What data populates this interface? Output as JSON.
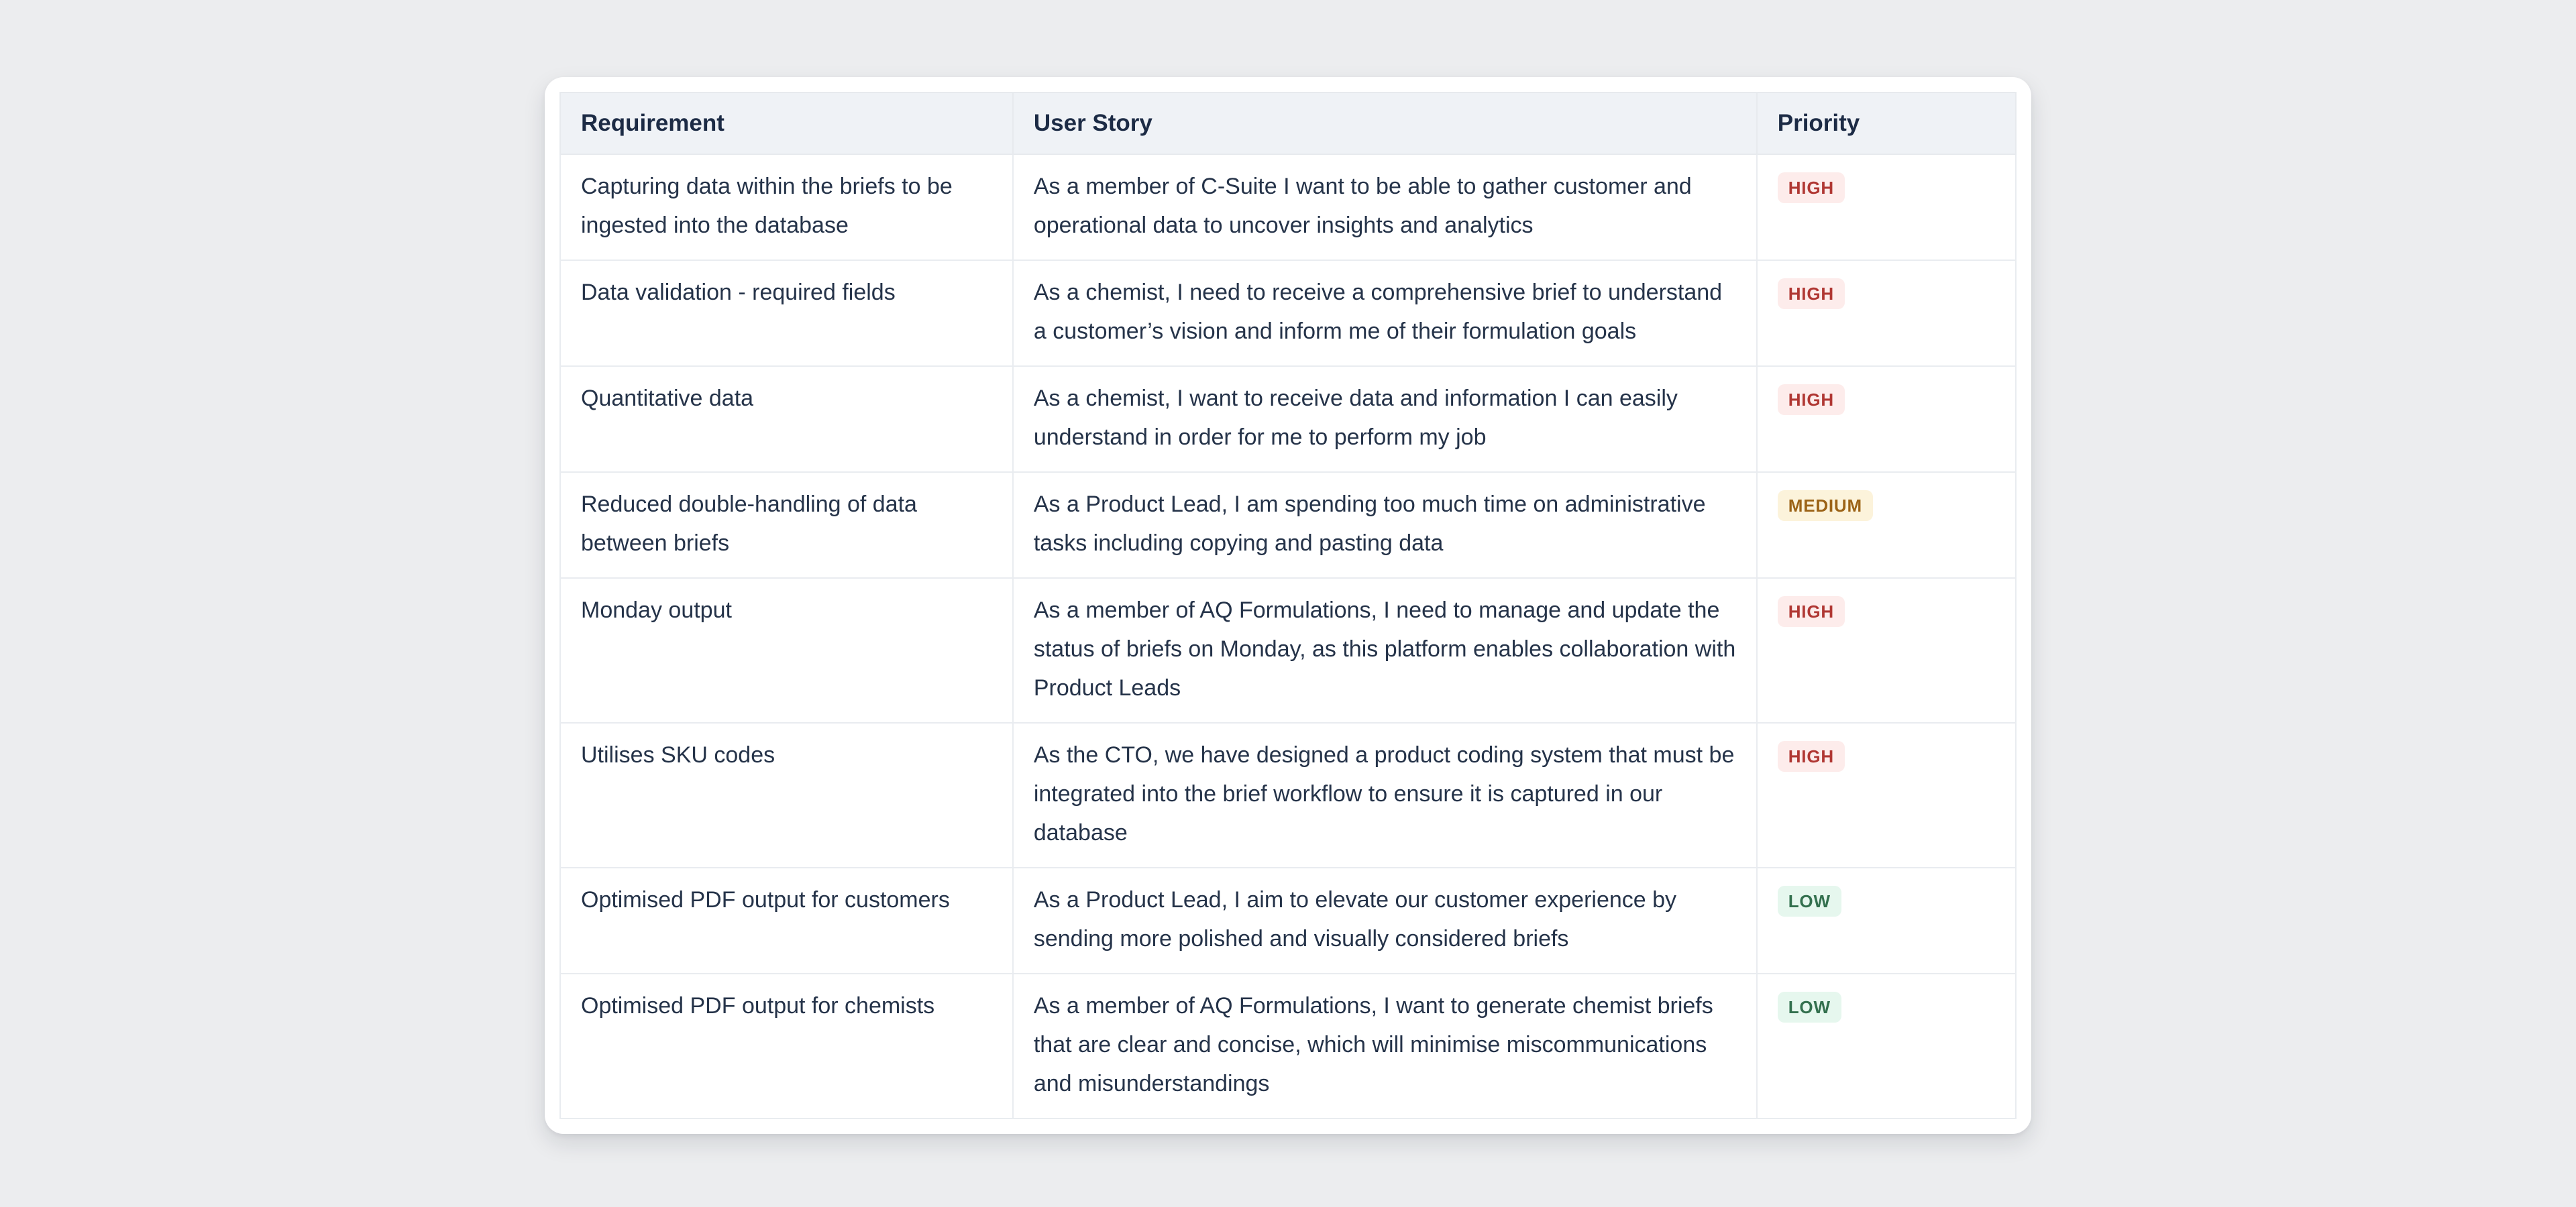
{
  "page": {
    "background_color": "#ecedef",
    "card_color": "#ffffff"
  },
  "table": {
    "columns": [
      {
        "key": "requirement",
        "label": "Requirement"
      },
      {
        "key": "user_story",
        "label": "User Story"
      },
      {
        "key": "priority",
        "label": "Priority"
      }
    ],
    "priority_styles": {
      "HIGH": {
        "color": "#b03733",
        "bg": "#fdeceb"
      },
      "MEDIUM": {
        "color": "#9c6317",
        "bg": "#fcf3db"
      },
      "LOW": {
        "color": "#33704e",
        "bg": "#e6f7ee"
      }
    },
    "header_bg": "#eff2f6",
    "rows": [
      {
        "requirement": "Capturing data within the briefs to be ingested into the database",
        "user_story": "As a member of C-Suite I want to be able to gather customer and operational data to uncover insights and analytics",
        "priority": "HIGH"
      },
      {
        "requirement": "Data validation - required fields",
        "user_story": "As a chemist, I need to receive a comprehensive brief to understand a customer’s vision and inform me of their formulation goals",
        "priority": "HIGH"
      },
      {
        "requirement": "Quantitative data",
        "user_story": "As a chemist, I want to receive data and information I can easily understand in order for me to perform my job",
        "priority": "HIGH"
      },
      {
        "requirement": "Reduced double-handling of data between briefs",
        "user_story": "As a Product Lead, I am spending too much time on administrative tasks including copying and pasting data",
        "priority": "MEDIUM"
      },
      {
        "requirement": "Monday output",
        "user_story": "As a member of AQ Formulations, I need to manage and update the status of briefs on Monday, as this platform enables collaboration with Product Leads",
        "priority": "HIGH"
      },
      {
        "requirement": "Utilises SKU codes",
        "user_story": "As the CTO, we have designed a product coding system that must be integrated into the brief workflow to ensure it is captured in our database",
        "priority": "HIGH"
      },
      {
        "requirement": "Optimised PDF output for customers",
        "user_story": "As a Product Lead, I aim to elevate our customer experience by sending more polished and visually considered briefs",
        "priority": "LOW"
      },
      {
        "requirement": "Optimised PDF output for chemists",
        "user_story": "As a member of AQ Formulations, I want to generate chemist briefs that are clear and concise, which will minimise miscommunications and misunderstandings",
        "priority": "LOW"
      }
    ]
  }
}
